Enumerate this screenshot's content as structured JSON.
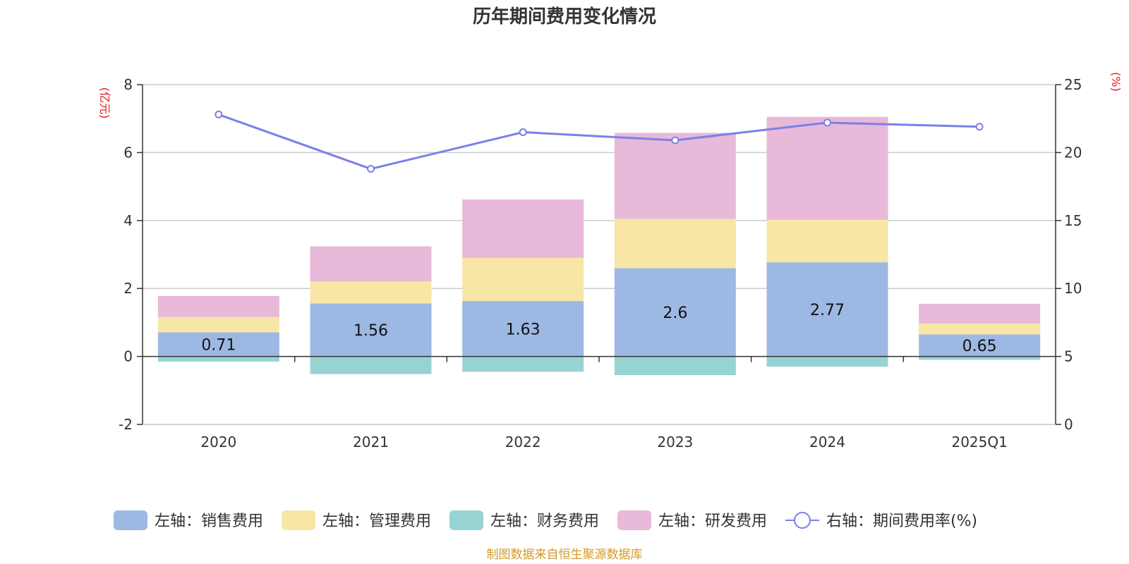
{
  "chart_data": {
    "type": "bar",
    "title": "历年期间费用变化情况",
    "categories": [
      "2020",
      "2021",
      "2022",
      "2023",
      "2024",
      "2025Q1"
    ],
    "left_axis": {
      "unit": "(亿元)",
      "range": [
        -2,
        8
      ],
      "ticks": [
        -2,
        0,
        2,
        4,
        6,
        8
      ]
    },
    "right_axis": {
      "unit": "(%)",
      "range": [
        0,
        25
      ],
      "ticks": [
        0,
        5,
        10,
        15,
        20,
        25
      ]
    },
    "series": [
      {
        "name": "左轴：销售费用",
        "axis": "left",
        "kind": "bar",
        "color": "#9db8e2",
        "values": [
          0.71,
          1.56,
          1.63,
          2.6,
          2.77,
          0.65
        ],
        "labels": [
          "0.71",
          "1.56",
          "1.63",
          "2.6",
          "2.77",
          "0.65"
        ]
      },
      {
        "name": "左轴：管理费用",
        "axis": "left",
        "kind": "bar",
        "color": "#f7e6a6",
        "values": [
          0.45,
          0.65,
          1.27,
          1.45,
          1.25,
          0.32
        ]
      },
      {
        "name": "左轴：财务费用",
        "axis": "left",
        "kind": "bar",
        "color": "#98d3d3",
        "values": [
          -0.15,
          -0.52,
          -0.45,
          -0.55,
          -0.3,
          -0.1
        ]
      },
      {
        "name": "左轴：研发费用",
        "axis": "left",
        "kind": "bar",
        "color": "#e8b9d9",
        "values": [
          0.62,
          1.03,
          1.72,
          2.53,
          3.03,
          0.58
        ]
      },
      {
        "name": "右轴：期间费用率(%)",
        "axis": "right",
        "kind": "line",
        "color": "#7b7fea",
        "values": [
          22.8,
          18.8,
          21.5,
          20.9,
          22.2,
          21.9
        ]
      }
    ],
    "grid": true,
    "legend_position": "bottom"
  },
  "source": "制图数据来自恒生聚源数据库"
}
